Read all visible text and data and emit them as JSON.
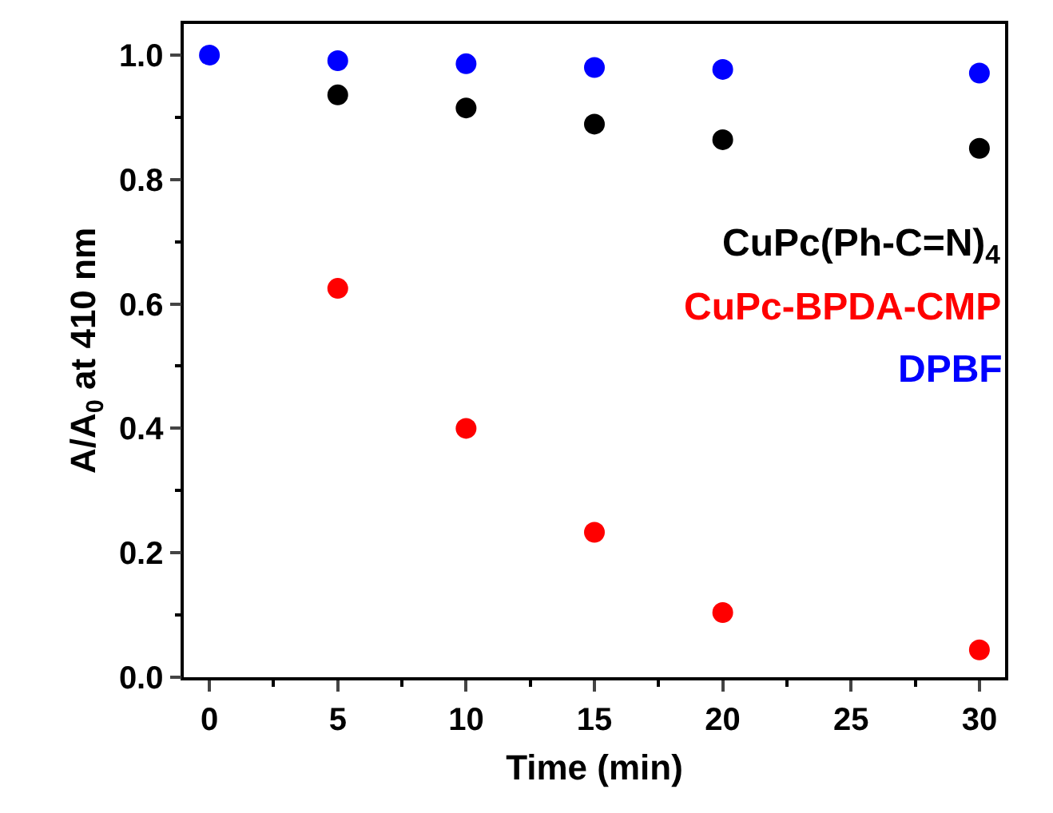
{
  "chart_data": {
    "type": "scatter",
    "xlabel": "Time (min)",
    "ylabel": "A/A$_{0}$ at 410 nm",
    "x": [
      0,
      5,
      10,
      15,
      20,
      30
    ],
    "series": [
      {
        "name": "CuPc(Ph-C=N)$_{4}$",
        "color": "#000000",
        "x": [
          5,
          10,
          15,
          20,
          30
        ],
        "values": [
          0.936,
          0.915,
          0.889,
          0.864,
          0.85
        ]
      },
      {
        "name": "CuPc-BPDA-CMP",
        "color": "#ff0000",
        "x": [
          5,
          10,
          15,
          20,
          30
        ],
        "values": [
          0.625,
          0.4,
          0.233,
          0.104,
          0.044
        ]
      },
      {
        "name": "DPBF",
        "color": "#0000ff",
        "values": [
          1.0,
          0.991,
          0.986,
          0.98,
          0.977,
          0.971
        ]
      }
    ],
    "xlim": [
      -1,
      31
    ],
    "xticks": [
      0,
      5,
      10,
      15,
      20,
      25,
      30
    ],
    "ylim": [
      0,
      1.05
    ],
    "yticks": [
      {
        "value": 0,
        "label": "0.0"
      },
      {
        "value": 0.2,
        "label": "0.2"
      },
      {
        "value": 0.4,
        "label": "0.4"
      },
      {
        "value": 0.6,
        "label": "0.6"
      },
      {
        "value": 0.8,
        "label": "0.8"
      },
      {
        "value": 1.0,
        "label": "1.0"
      }
    ],
    "marker": "circle",
    "legend": false
  }
}
